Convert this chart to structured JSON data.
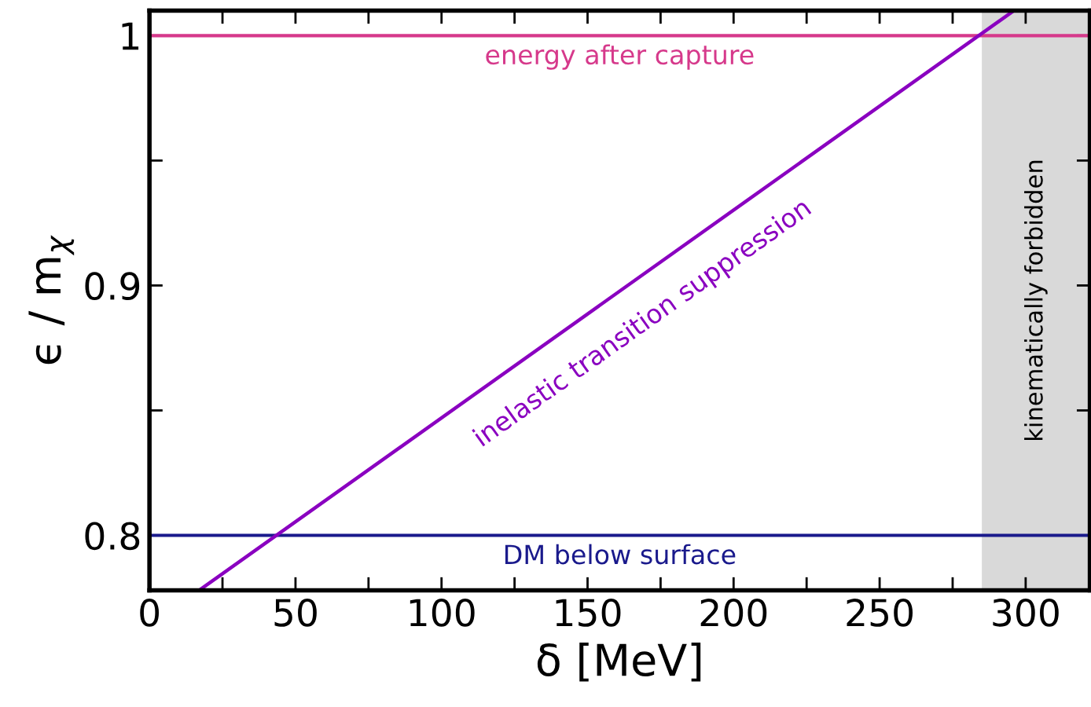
{
  "chart_data": {
    "type": "line",
    "xlabel": "δ [MeV]",
    "ylabel": "ϵ / m$_{χ}$",
    "series": [
      {
        "color": "#8a00c0",
        "x": [
          17,
          296
        ],
        "values": [
          0.778,
          1.01
        ]
      }
    ],
    "annotations": [
      {
        "text": "inelastic transition suppression",
        "x": 162,
        "y": 0.894
      }
    ],
    "ref_lines": [
      {
        "axis": "y",
        "value": 1.0,
        "label": "energy after capture",
        "color": "#d6398b"
      },
      {
        "axis": "y",
        "value": 0.8,
        "label": "DM below surface",
        "color": "#1a1a8c"
      }
    ],
    "bands": [
      {
        "axis": "x",
        "from": 285,
        "to": 322,
        "label": "kinematically forbidden",
        "color": "#d9d9d9"
      }
    ],
    "xlim": [
      0,
      322
    ],
    "ylim": [
      0.778,
      1.01
    ],
    "xticks": [
      0,
      {
        "value": 25,
        "label": null
      },
      50,
      {
        "value": 75,
        "label": null
      },
      100,
      {
        "value": 125,
        "label": null
      },
      150,
      {
        "value": 175,
        "label": null
      },
      200,
      {
        "value": 225,
        "label": null
      },
      250,
      {
        "value": 275,
        "label": null
      },
      300
    ],
    "yticks": [
      0.8,
      {
        "value": 0.85,
        "label": null
      },
      0.9,
      {
        "value": 0.95,
        "label": null
      },
      1
    ],
    "grid": false
  }
}
